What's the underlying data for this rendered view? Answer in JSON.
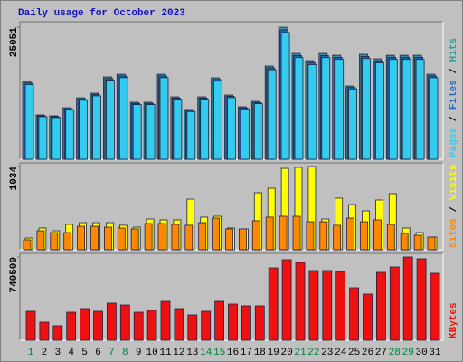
{
  "chart_data": [
    {
      "type": "bar",
      "title": "Daily usage for October 2023",
      "legend_separator": " / ",
      "ylim": [
        0,
        26100
      ],
      "yticks": [
        25051
      ],
      "series": [
        {
          "name": "Pages",
          "color": "#33ccee",
          "values": [
            14170,
            8070,
            7910,
            9390,
            11200,
            12030,
            15000,
            15480,
            10380,
            10380,
            15480,
            11370,
            9060,
            11370,
            14820,
            11690,
            9550,
            10540,
            16970,
            24050,
            19280,
            17950,
            19280,
            18940,
            13340,
            19110,
            18290,
            18940,
            18940,
            18940,
            15480
          ]
        },
        {
          "name": "Files",
          "color": "#2266bb",
          "values": [
            14460,
            8240,
            8080,
            9580,
            11440,
            12280,
            15310,
            15810,
            10590,
            10590,
            15810,
            11600,
            9250,
            11600,
            15130,
            11940,
            9750,
            10760,
            17330,
            24550,
            19680,
            18330,
            19680,
            19340,
            13620,
            19510,
            18670,
            19340,
            19340,
            19340,
            15810
          ]
        },
        {
          "name": "Hits",
          "color": "#339999",
          "values": [
            14760,
            8410,
            8240,
            9780,
            11670,
            12530,
            15620,
            16130,
            10810,
            10810,
            16130,
            11840,
            9440,
            11840,
            15440,
            12180,
            9950,
            10980,
            17680,
            25051,
            20080,
            18700,
            20080,
            19730,
            13900,
            19910,
            19050,
            19730,
            19730,
            19730,
            16130
          ]
        }
      ]
    },
    {
      "type": "bar",
      "legend_separator": " / ",
      "ylim": [
        0,
        1079
      ],
      "yticks": [
        1034
      ],
      "series": [
        {
          "name": "Sites",
          "color": "#ff8800",
          "values": [
            124,
            236,
            213,
            213,
            292,
            292,
            281,
            270,
            259,
            326,
            326,
            315,
            304,
            337,
            393,
            259,
            259,
            360,
            405,
            416,
            416,
            348,
            348,
            304,
            393,
            348,
            371,
            315,
            202,
            180,
            157
          ]
        },
        {
          "name": "Visits",
          "color": "#ffff00",
          "values": [
            146,
            270,
            236,
            315,
            337,
            337,
            337,
            304,
            281,
            382,
            371,
            371,
            629,
            405,
            416,
            270,
            259,
            708,
            764,
            1011,
            1023,
            1034,
            382,
            641,
            562,
            483,
            618,
            697,
            270,
            214,
            157
          ]
        }
      ]
    },
    {
      "type": "bar",
      "ylim": [
        0,
        772700
      ],
      "yticks": [
        740500
      ],
      "categories": [
        "1",
        "2",
        "3",
        "4",
        "5",
        "6",
        "7",
        "8",
        "9",
        "10",
        "11",
        "12",
        "13",
        "14",
        "15",
        "16",
        "17",
        "18",
        "19",
        "20",
        "21",
        "22",
        "23",
        "24",
        "25",
        "26",
        "27",
        "28",
        "29",
        "30",
        "31"
      ],
      "highlighted_categories": [
        0,
        6,
        7,
        13,
        14,
        20,
        21,
        27,
        28
      ],
      "highlight_color": "#008040",
      "series": [
        {
          "name": "KBytes",
          "color": "#ee1111",
          "values": [
            257600,
            161000,
            128800,
            249500,
            281700,
            257600,
            330000,
            313900,
            249500,
            265600,
            346100,
            281700,
            225400,
            257600,
            346100,
            322000,
            305900,
            305900,
            643900,
            716400,
            692200,
            619800,
            619800,
            611700,
            466800,
            410500,
            603700,
            652000,
            740500,
            724400,
            595600
          ]
        }
      ]
    }
  ]
}
